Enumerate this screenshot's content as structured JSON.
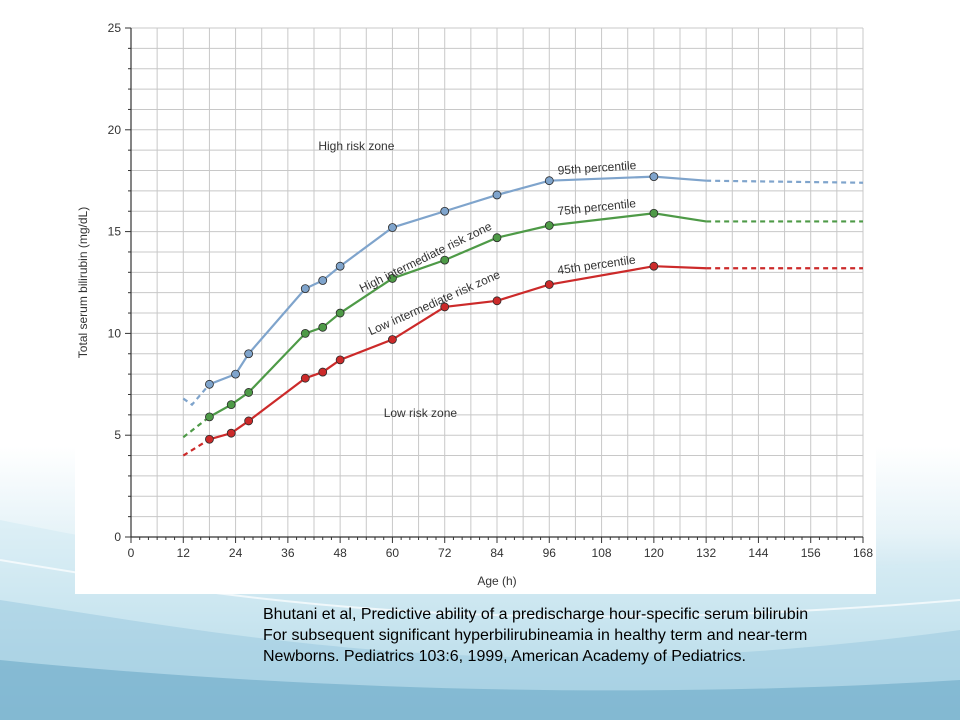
{
  "citation": {
    "line1": "Bhutani et al, Predictive ability of a predischarge hour-specific serum bilirubin",
    "line2": "For subsequent significant hyperbilirubineamia in healthy term and near-term",
    "line3": "Newborns. Pediatrics 103:6, 1999, American Academy of Pediatrics."
  },
  "colors": {
    "p95": "#7fa4cc",
    "p75": "#4e9a47",
    "p45": "#cc2a2a",
    "grid": "#c8c8c8",
    "axis": "#333333"
  },
  "chart_data": {
    "type": "line",
    "xlabel": "Age (h)",
    "ylabel": "Total serum bilirubin (mg/dL)",
    "xlim": [
      0,
      168
    ],
    "ylim": [
      0,
      25
    ],
    "x_ticks": [
      0,
      12,
      24,
      36,
      48,
      60,
      72,
      84,
      96,
      108,
      120,
      132,
      144,
      156,
      168
    ],
    "y_ticks": [
      0,
      5,
      10,
      15,
      20,
      25
    ],
    "grid": true,
    "series": [
      {
        "name": "95th percentile",
        "color": "#7fa4cc",
        "points": [
          [
            18,
            7.5
          ],
          [
            24,
            8.0
          ],
          [
            27,
            9.0
          ],
          [
            40,
            12.2
          ],
          [
            44,
            12.6
          ],
          [
            48,
            13.3
          ],
          [
            60,
            15.2
          ],
          [
            72,
            16.0
          ],
          [
            84,
            16.8
          ],
          [
            96,
            17.5
          ],
          [
            120,
            17.7
          ]
        ],
        "solid_end": [
          132,
          17.5
        ],
        "dashed_start": [
          [
            12,
            6.8
          ],
          [
            14,
            6.5
          ],
          [
            18,
            7.5
          ]
        ],
        "dashed_end": [
          [
            132,
            17.5
          ],
          [
            168,
            17.4
          ]
        ]
      },
      {
        "name": "75th percentile",
        "color": "#4e9a47",
        "points": [
          [
            18,
            5.9
          ],
          [
            23,
            6.5
          ],
          [
            27,
            7.1
          ],
          [
            40,
            10.0
          ],
          [
            44,
            10.3
          ],
          [
            48,
            11.0
          ],
          [
            60,
            12.7
          ],
          [
            72,
            13.6
          ],
          [
            84,
            14.7
          ],
          [
            96,
            15.3
          ],
          [
            120,
            15.9
          ]
        ],
        "solid_end": [
          132,
          15.5
        ],
        "dashed_start": [
          [
            12,
            4.9
          ],
          [
            18,
            5.9
          ]
        ],
        "dashed_end": [
          [
            132,
            15.5
          ],
          [
            168,
            15.5
          ]
        ]
      },
      {
        "name": "45th percentile",
        "color": "#cc2a2a",
        "points": [
          [
            18,
            4.8
          ],
          [
            23,
            5.1
          ],
          [
            27,
            5.7
          ],
          [
            40,
            7.8
          ],
          [
            44,
            8.1
          ],
          [
            48,
            8.7
          ],
          [
            60,
            9.7
          ],
          [
            72,
            11.3
          ],
          [
            84,
            11.6
          ],
          [
            96,
            12.4
          ],
          [
            120,
            13.3
          ]
        ],
        "solid_end": [
          132,
          13.2
        ],
        "dashed_start": [
          [
            12,
            4.0
          ],
          [
            18,
            4.8
          ]
        ],
        "dashed_end": [
          [
            132,
            13.2
          ],
          [
            168,
            13.2
          ]
        ]
      }
    ],
    "annotations": [
      {
        "text": "High risk zone",
        "x": 43,
        "y": 19.0,
        "angle": 0
      },
      {
        "text": "95th percentile",
        "x": 98,
        "y": 17.8,
        "angle": -4
      },
      {
        "text": "75th percentile",
        "x": 98,
        "y": 15.8,
        "angle": -6
      },
      {
        "text": "45th percentile",
        "x": 98,
        "y": 12.9,
        "angle": -8
      },
      {
        "text": "High intermediate risk zone",
        "x": 53,
        "y": 12.0,
        "angle": -26
      },
      {
        "text": "Low intermediate risk zone",
        "x": 55,
        "y": 9.9,
        "angle": -24
      },
      {
        "text": "Low risk zone",
        "x": 58,
        "y": 5.9,
        "angle": 0
      }
    ]
  }
}
